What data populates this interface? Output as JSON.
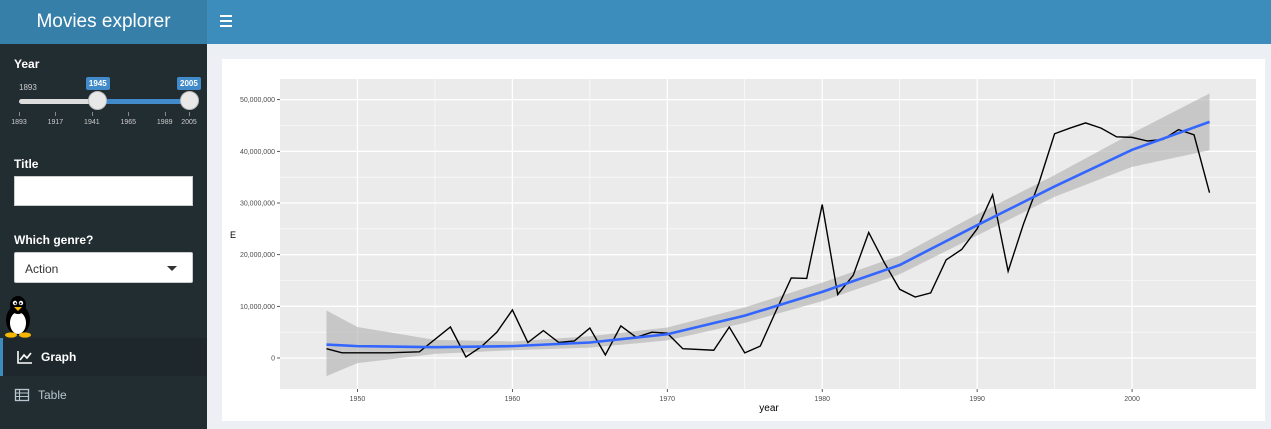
{
  "app": {
    "title": "Movies explorer"
  },
  "sidebar": {
    "year": {
      "label": "Year",
      "min": 1893,
      "max": 2005,
      "selected_from": "1945",
      "selected_to": "2005",
      "min_label": "1893",
      "ticks": [
        "1893",
        "1917",
        "1941",
        "1965",
        "1989",
        "2005"
      ]
    },
    "title_filter": {
      "label": "Title",
      "value": ""
    },
    "genre": {
      "label": "Which genre?",
      "value": "Action"
    },
    "menu": [
      {
        "label": "Graph",
        "icon": "line-chart-icon",
        "active": true
      },
      {
        "label": "Table",
        "icon": "table-icon",
        "active": false
      }
    ]
  },
  "chart_data": {
    "type": "line",
    "xlabel": "year",
    "ylabel": "E",
    "xlim": [
      1945,
      2008
    ],
    "ylim": [
      -6000000,
      54000000
    ],
    "x_ticks": [
      1950,
      1960,
      1970,
      1980,
      1990,
      2000
    ],
    "y_ticks": [
      0,
      10000000,
      20000000,
      30000000,
      40000000,
      50000000
    ],
    "y_tick_labels": [
      "0",
      "10,000,000",
      "20,000,000",
      "30,000,000",
      "40,000,000",
      "50,000,000"
    ],
    "grid": true,
    "series": [
      {
        "color": "#000000",
        "x": [
          1948,
          1949,
          1952,
          1954,
          1956,
          1957,
          1958,
          1959,
          1960,
          1961,
          1962,
          1963,
          1964,
          1965,
          1966,
          1967,
          1968,
          1969,
          1970,
          1971,
          1973,
          1974,
          1975,
          1976,
          1977,
          1978,
          1979,
          1980,
          1981,
          1982,
          1983,
          1984,
          1985,
          1986,
          1987,
          1988,
          1989,
          1990,
          1991,
          1992,
          1993,
          1994,
          1995,
          1996,
          1997,
          1998,
          1999,
          2000,
          2001,
          2002,
          2003,
          2004,
          2005
        ],
        "y": [
          1800000,
          1000000,
          1000000,
          1200000,
          6000000,
          200000,
          2200000,
          5000000,
          9300000,
          3000000,
          5300000,
          3000000,
          3300000,
          5800000,
          600000,
          6200000,
          4000000,
          5000000,
          4800000,
          1800000,
          1500000,
          6000000,
          1000000,
          2300000,
          9000000,
          15500000,
          15400000,
          29700000,
          12300000,
          16000000,
          24300000,
          18500000,
          13300000,
          11800000,
          12600000,
          19000000,
          21000000,
          25000000,
          31600000,
          16800000,
          26000000,
          34000000,
          43400000,
          44500000,
          45500000,
          44500000,
          42800000,
          42700000,
          42000000,
          42300000,
          44200000,
          43200000,
          32000000
        ]
      },
      {
        "color": "#3366ff",
        "x": [
          1948,
          1950,
          1955,
          1960,
          1965,
          1970,
          1975,
          1980,
          1985,
          1990,
          1995,
          2000,
          2005
        ],
        "y": [
          2600000,
          2300000,
          2100000,
          2300000,
          3000000,
          4600000,
          8200000,
          12800000,
          18000000,
          25700000,
          33200000,
          40300000,
          45700000
        ]
      }
    ],
    "confidence_band": {
      "x": [
        1948,
        1950,
        1955,
        1960,
        1965,
        1970,
        1975,
        1980,
        1985,
        1990,
        1995,
        2000,
        2005
      ],
      "lower": [
        -3500000,
        -1000000,
        800000,
        1500000,
        2000000,
        3400000,
        6800000,
        11000000,
        16200000,
        23700000,
        31200000,
        37000000,
        40200000
      ],
      "upper": [
        9200000,
        6000000,
        3500000,
        3200000,
        4200000,
        5900000,
        9800000,
        14600000,
        19800000,
        27800000,
        35400000,
        43500000,
        51200000
      ]
    }
  }
}
